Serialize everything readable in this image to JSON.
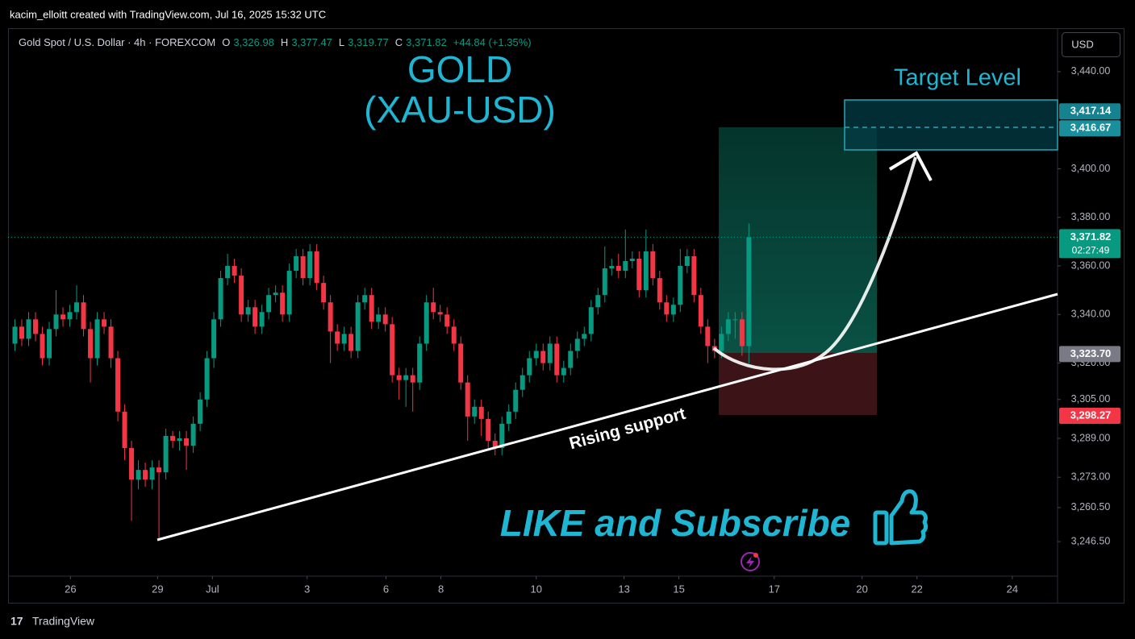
{
  "header": "kacim_elloitt created with TradingView.com, Jul 16, 2025 15:32 UTC",
  "footer": "TradingView",
  "chart_data": {
    "type": "candlestick",
    "symbol": "Gold Spot / U.S. Dollar · 4h · FOREXCOM",
    "legend": [
      {
        "key": "O",
        "text": "3,326.98"
      },
      {
        "key": "H",
        "text": "3,377.47"
      },
      {
        "key": "L",
        "text": "3,319.77"
      },
      {
        "key": "C",
        "text": "3,371.82"
      }
    ],
    "change": "+44.84 (+1.35%)",
    "currency": "USD",
    "title": [
      "GOLD",
      "(XAU-USD)"
    ],
    "annotations": {
      "target": "Target Level",
      "support": "Rising support",
      "cta": "LIKE and Subscribe"
    },
    "up_color": "#089981",
    "down_color": "#f23645",
    "open": [
      3328,
      3335,
      3330,
      3338,
      3332,
      3322,
      3334,
      3340,
      3338,
      3341,
      3345,
      3334,
      3322,
      3338,
      3335,
      3322,
      3300,
      3285,
      3272,
      3276,
      3272,
      3277,
      3275,
      3290,
      3288,
      3289,
      3286,
      3295,
      3305,
      3322,
      3338,
      3355,
      3360,
      3356,
      3340,
      3343,
      3335,
      3341,
      3348,
      3349,
      3340,
      3358,
      3364,
      3355,
      3366,
      3353,
      3345,
      3333,
      3328,
      3332,
      3325,
      3345,
      3348,
      3337,
      3340,
      3336,
      3315,
      3313,
      3315,
      3312,
      3328,
      3345,
      3341,
      3340,
      3335,
      3328,
      3312,
      3298,
      3302,
      3297,
      3288,
      3285,
      3295,
      3300,
      3309,
      3315,
      3322,
      3325,
      3320,
      3328,
      3315,
      3318,
      3325,
      3330,
      3332,
      3343,
      3348,
      3359,
      3360,
      3358,
      3362,
      3363,
      3350,
      3366,
      3355,
      3345,
      3340,
      3344,
      3360,
      3364,
      3348,
      3335,
      3327,
      3325,
      3332,
      3338,
      3338,
      3326.98
    ],
    "high": [
      3338,
      3338,
      3341,
      3341,
      3335,
      3337,
      3350,
      3343,
      3344,
      3352,
      3348,
      3337,
      3341,
      3341,
      3338,
      3325,
      3303,
      3288,
      3280,
      3279,
      3280,
      3280,
      3293,
      3292,
      3292,
      3292,
      3298,
      3308,
      3325,
      3341,
      3358,
      3365,
      3363,
      3359,
      3346,
      3346,
      3344,
      3351,
      3352,
      3352,
      3361,
      3367,
      3367,
      3369,
      3369,
      3356,
      3348,
      3336,
      3335,
      3335,
      3348,
      3351,
      3351,
      3343,
      3343,
      3339,
      3318,
      3318,
      3318,
      3331,
      3348,
      3351,
      3344,
      3343,
      3338,
      3331,
      3315,
      3305,
      3305,
      3300,
      3291,
      3298,
      3303,
      3312,
      3318,
      3325,
      3328,
      3328,
      3331,
      3331,
      3321,
      3328,
      3333,
      3335,
      3346,
      3351,
      3368,
      3363,
      3365,
      3375,
      3366,
      3366,
      3375,
      3369,
      3358,
      3348,
      3347,
      3367,
      3367,
      3367,
      3351,
      3338,
      3330,
      3335,
      3341,
      3341,
      3341,
      3377.47
    ],
    "low": [
      3325,
      3327,
      3327,
      3329,
      3319,
      3319,
      3331,
      3335,
      3335,
      3338,
      3331,
      3312,
      3319,
      3332,
      3318,
      3296,
      3280,
      3255,
      3268,
      3269,
      3268,
      3248,
      3272,
      3285,
      3284,
      3276,
      3283,
      3292,
      3302,
      3318,
      3335,
      3352,
      3353,
      3337,
      3337,
      3332,
      3332,
      3338,
      3345,
      3337,
      3337,
      3355,
      3352,
      3352,
      3350,
      3342,
      3320,
      3325,
      3325,
      3322,
      3322,
      3342,
      3334,
      3334,
      3333,
      3312,
      3305,
      3302,
      3300,
      3309,
      3325,
      3338,
      3337,
      3332,
      3325,
      3309,
      3288,
      3295,
      3290,
      3285,
      3282,
      3282,
      3292,
      3297,
      3306,
      3312,
      3319,
      3317,
      3317,
      3312,
      3312,
      3315,
      3322,
      3327,
      3329,
      3340,
      3345,
      3356,
      3355,
      3355,
      3359,
      3347,
      3347,
      3352,
      3342,
      3337,
      3337,
      3341,
      3357,
      3345,
      3332,
      3320,
      3322,
      3322,
      3329,
      3330,
      3323,
      3319.77
    ],
    "close": [
      3335,
      3330,
      3338,
      3332,
      3322,
      3334,
      3340,
      3338,
      3341,
      3345,
      3334,
      3322,
      3338,
      3335,
      3322,
      3300,
      3285,
      3272,
      3276,
      3272,
      3277,
      3275,
      3290,
      3288,
      3289,
      3286,
      3295,
      3305,
      3322,
      3338,
      3355,
      3360,
      3356,
      3340,
      3343,
      3335,
      3341,
      3348,
      3349,
      3340,
      3358,
      3364,
      3355,
      3366,
      3353,
      3345,
      3333,
      3328,
      3332,
      3325,
      3345,
      3348,
      3337,
      3340,
      3336,
      3315,
      3313,
      3315,
      3312,
      3328,
      3345,
      3341,
      3340,
      3335,
      3328,
      3312,
      3298,
      3302,
      3297,
      3288,
      3285,
      3295,
      3300,
      3309,
      3315,
      3322,
      3325,
      3320,
      3328,
      3315,
      3318,
      3325,
      3330,
      3332,
      3343,
      3348,
      3359,
      3360,
      3358,
      3362,
      3363,
      3350,
      3366,
      3355,
      3345,
      3340,
      3344,
      3360,
      3364,
      3348,
      3335,
      3327,
      3325,
      3332,
      3338,
      3338,
      3326.98,
      3371.82
    ],
    "xlim": [
      -1,
      152
    ],
    "xticks": [
      {
        "value": 8.1,
        "label": "26"
      },
      {
        "value": 20.8,
        "label": "29"
      },
      {
        "value": 28.8,
        "label": "Jul"
      },
      {
        "value": 42.6,
        "label": "3"
      },
      {
        "value": 54.1,
        "label": "6"
      },
      {
        "value": 62.1,
        "label": "8"
      },
      {
        "value": 76,
        "label": "10"
      },
      {
        "value": 88.8,
        "label": "13"
      },
      {
        "value": 96.8,
        "label": "15"
      },
      {
        "value": 110.7,
        "label": "17"
      },
      {
        "value": 123.5,
        "label": "20"
      },
      {
        "value": 131.5,
        "label": "22"
      },
      {
        "value": 145.4,
        "label": "24"
      }
    ],
    "ylim": [
      3221.3,
      3457.9
    ],
    "yticks": [
      {
        "value": 3440,
        "label": "3,440.00"
      },
      {
        "value": 3400,
        "label": "3,400.00"
      },
      {
        "value": 3380,
        "label": "3,380.00"
      },
      {
        "value": 3360,
        "label": "3,360.00"
      },
      {
        "value": 3340,
        "label": "3,340.00"
      },
      {
        "value": 3320,
        "label": "3,320.00"
      },
      {
        "value": 3305,
        "label": "3,305.00"
      },
      {
        "value": 3289,
        "label": "3,289.00"
      },
      {
        "value": 3273,
        "label": "3,273.00"
      },
      {
        "value": 3260.5,
        "label": "3,260.50"
      },
      {
        "value": 3246.5,
        "label": "3,246.50"
      }
    ],
    "price_tags": [
      {
        "value": 3417.14,
        "label": "3,417.14",
        "color": "#15828f"
      },
      {
        "value": 3416.67,
        "label": "3,416.67",
        "color": "#1a8f9c"
      },
      {
        "value": 3371.82,
        "label": "3,371.82",
        "sub": "02:27:49",
        "color": "#089981"
      },
      {
        "value": 3323.7,
        "label": "3,323.70",
        "color": "#787b86"
      },
      {
        "value": 3298.27,
        "label": "3,298.27",
        "color": "#f23645"
      }
    ]
  }
}
